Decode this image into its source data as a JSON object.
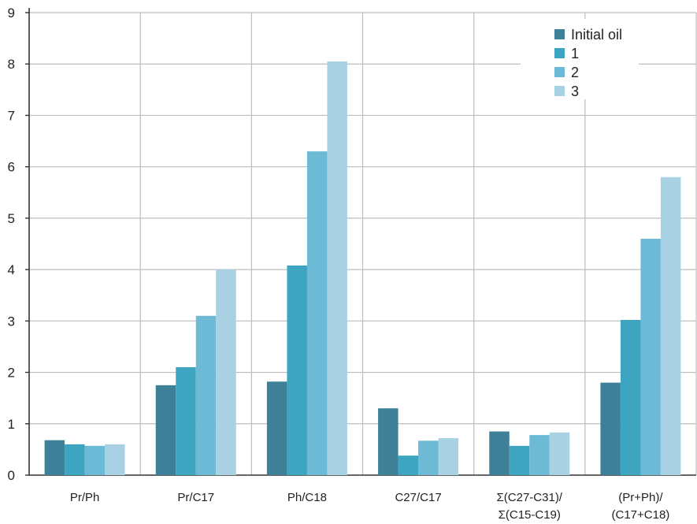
{
  "chart_data": {
    "type": "bar",
    "title": "",
    "xlabel": "",
    "ylabel": "",
    "ylim": [
      0,
      9
    ],
    "yticks": [
      "0",
      "1",
      "2",
      "3",
      "4",
      "5",
      "6",
      "7",
      "8",
      "9"
    ],
    "grid": true,
    "legend_position": "top-right",
    "categories": [
      [
        "Pr/Ph"
      ],
      [
        "Pr/C17"
      ],
      [
        "Ph/C18"
      ],
      [
        "C27/C17"
      ],
      [
        "Σ(C27-C31)/",
        "Σ(C15-C19)"
      ],
      [
        "(Pr+Ph)/",
        "(C17+C18)"
      ]
    ],
    "series": [
      {
        "name": "Initial oil",
        "color": "#3d8098",
        "values": [
          0.68,
          1.75,
          1.82,
          1.3,
          0.85,
          1.8
        ]
      },
      {
        "name": "1",
        "color": "#3ea5c0",
        "values": [
          0.6,
          2.1,
          4.08,
          0.38,
          0.57,
          3.02
        ]
      },
      {
        "name": "2",
        "color": "#6dbad6",
        "values": [
          0.57,
          3.1,
          6.3,
          0.67,
          0.78,
          4.6
        ]
      },
      {
        "name": "3",
        "color": "#a8d2e3",
        "values": [
          0.6,
          4.0,
          8.05,
          0.72,
          0.83,
          5.8
        ]
      }
    ]
  }
}
